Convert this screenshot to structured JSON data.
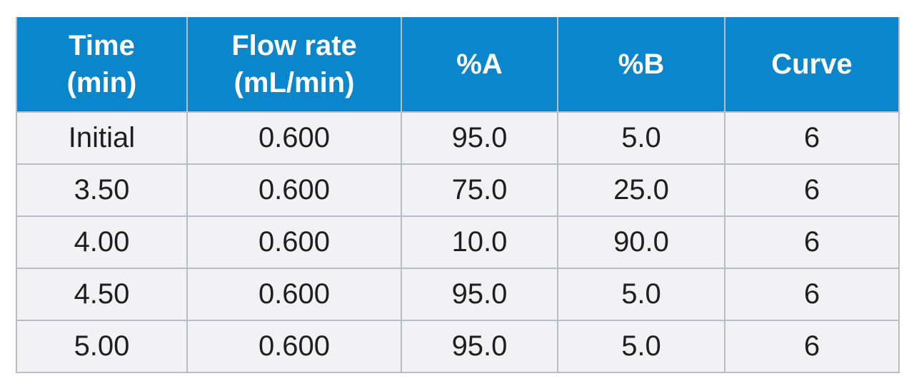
{
  "colors": {
    "header_bg": "#0a86cc",
    "header_text": "#ffffff",
    "body_bg": "#f2f2f4",
    "grid": "#b9bcc3",
    "body_text": "#1f1f1f"
  },
  "table": {
    "headers": [
      {
        "line1": "Time",
        "line2": "(min)"
      },
      {
        "line1": "Flow rate",
        "line2": "(mL/min)"
      },
      {
        "line1": "%A",
        "line2": ""
      },
      {
        "line1": "%B",
        "line2": ""
      },
      {
        "line1": "Curve",
        "line2": ""
      }
    ],
    "rows": [
      [
        "Initial",
        "0.600",
        "95.0",
        "5.0",
        "6"
      ],
      [
        "3.50",
        "0.600",
        "75.0",
        "25.0",
        "6"
      ],
      [
        "4.00",
        "0.600",
        "10.0",
        "90.0",
        "6"
      ],
      [
        "4.50",
        "0.600",
        "95.0",
        "5.0",
        "6"
      ],
      [
        "5.00",
        "0.600",
        "95.0",
        "5.0",
        "6"
      ]
    ]
  }
}
